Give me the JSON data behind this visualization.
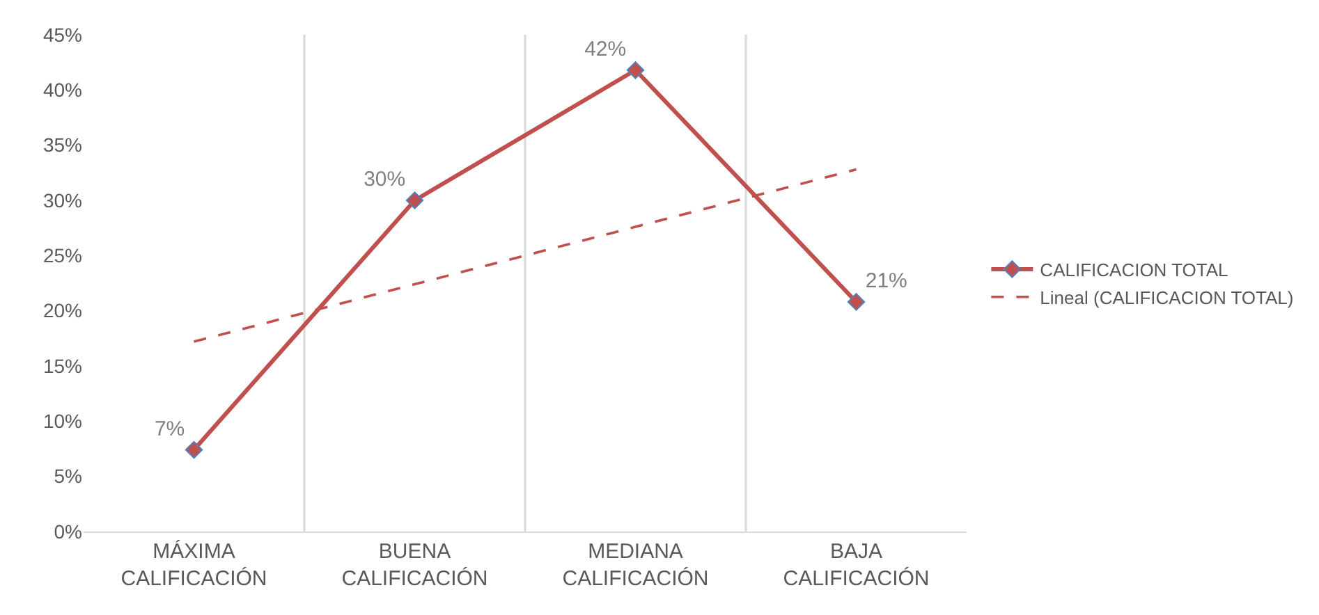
{
  "chart_data": {
    "type": "line",
    "categories": [
      "MÁXIMA CALIFICACIÓN",
      "BUENA CALIFICACIÓN",
      "MEDIANA CALIFICACIÓN",
      "BAJA CALIFICACIÓN"
    ],
    "series": [
      {
        "name": "CALIFICACION TOTAL",
        "color": "#c0504d",
        "values": [
          7.4,
          30,
          41.8,
          20.8
        ],
        "value_labels": [
          "7%",
          "30%",
          "42%",
          "21%"
        ],
        "marker": "diamond",
        "line_style": "solid"
      },
      {
        "name": "Lineal (CALIFICACION TOTAL)",
        "color": "#c0504d",
        "values": [
          17.2,
          22.4,
          27.6,
          32.8
        ],
        "marker": "none",
        "line_style": "dashed"
      }
    ],
    "ylim": [
      0,
      45
    ],
    "yticks": [
      {
        "value": 0,
        "label": "0%"
      },
      {
        "value": 5,
        "label": "5%"
      },
      {
        "value": 10,
        "label": "10%"
      },
      {
        "value": 15,
        "label": "15%"
      },
      {
        "value": 20,
        "label": "20%"
      },
      {
        "value": 25,
        "label": "25%"
      },
      {
        "value": 30,
        "label": "30%"
      },
      {
        "value": 35,
        "label": "35%"
      },
      {
        "value": 40,
        "label": "40%"
      },
      {
        "value": 45,
        "label": "45%"
      }
    ],
    "grid": "x",
    "legend": "right"
  }
}
